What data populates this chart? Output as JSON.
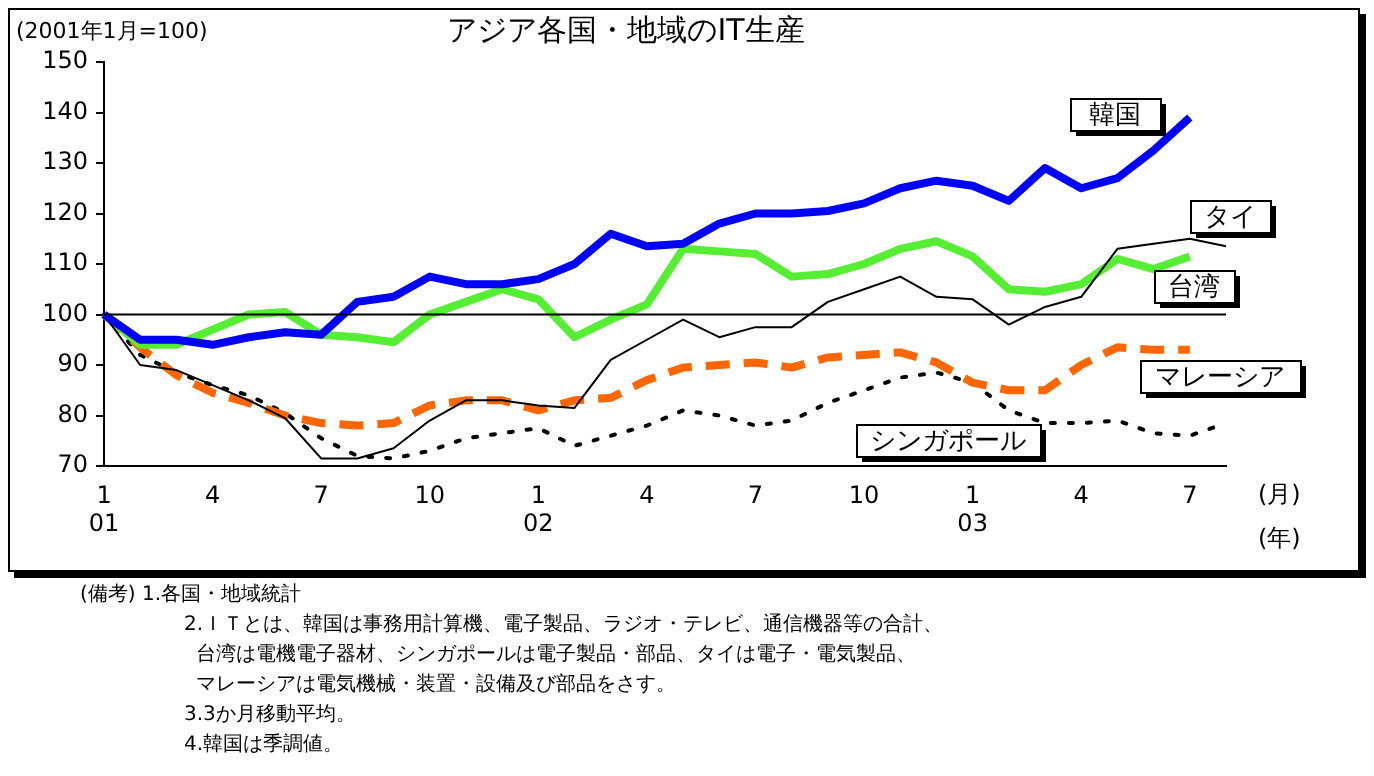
{
  "chart_data": {
    "type": "line",
    "title": "アジア各国・地域のIT生産",
    "ylabel": "(2001年1月=100)",
    "xlabel": "(月)\n(年)",
    "categories": [
      "1\n01",
      null,
      null,
      "4",
      null,
      null,
      "7",
      null,
      null,
      "10",
      null,
      null,
      "1\n02",
      null,
      null,
      "4",
      null,
      null,
      "7",
      null,
      null,
      "10",
      null,
      null,
      "1\n03",
      null,
      null,
      "4",
      null,
      null,
      "7",
      null
    ],
    "series": [
      {
        "name": "韓国",
        "color": "#0000ff",
        "line_style": "solid",
        "values": [
          100,
          95,
          95,
          94,
          95.5,
          96.5,
          96,
          102.5,
          103.5,
          107.5,
          106,
          106,
          107,
          110,
          116,
          113.5,
          114,
          118,
          120,
          120,
          120.5,
          122,
          125,
          126.5,
          125.5,
          122.5,
          129,
          125,
          127,
          132.5,
          139,
          null
        ]
      },
      {
        "name": "タイ",
        "color": "#000000",
        "line_style": "solid",
        "values": [
          100,
          90,
          89,
          86,
          83,
          79.5,
          71.5,
          71.5,
          73.5,
          79,
          83,
          83,
          82,
          81.5,
          91,
          95,
          99,
          95.5,
          97.5,
          97.5,
          102.5,
          105,
          107.5,
          103.5,
          103,
          98,
          101.5,
          103.5,
          113,
          114,
          115,
          113.5
        ]
      },
      {
        "name": "台湾",
        "color": "#55ee33",
        "line_style": "solid",
        "values": [
          100,
          94,
          94,
          97,
          100,
          100.5,
          96,
          95.5,
          94.5,
          100,
          102.5,
          105,
          103,
          95.5,
          99,
          102,
          113,
          112.5,
          112,
          107.5,
          108,
          110,
          113,
          114.5,
          111.5,
          105,
          104.5,
          106,
          111,
          109,
          111.5,
          null
        ]
      },
      {
        "name": "マレーシア",
        "color": "#ff6600",
        "line_style": "dashed",
        "values": [
          100,
          93.5,
          88,
          84.5,
          82.5,
          80,
          78.5,
          78,
          78.5,
          82,
          83,
          83,
          81,
          83,
          83.5,
          87,
          89.5,
          90,
          90.5,
          89.5,
          91.5,
          92,
          92.5,
          90.5,
          86.5,
          85,
          85,
          90,
          93.5,
          93,
          93,
          null
        ]
      },
      {
        "name": "シンガポール",
        "color": "#000000",
        "line_style": "dotted",
        "values": [
          100,
          92,
          88.5,
          86,
          84,
          80.5,
          75.5,
          72,
          71.5,
          73,
          75.5,
          76.5,
          77.5,
          74,
          76,
          78,
          81,
          80,
          78,
          79,
          82.5,
          85,
          87.5,
          88.5,
          86.5,
          81,
          78.5,
          78.5,
          79,
          76.5,
          76,
          78.5
        ]
      }
    ],
    "ylim": [
      70,
      150
    ],
    "yticks": [
      70,
      80,
      90,
      100,
      110,
      120,
      130,
      140,
      150
    ],
    "ref_lines": [
      {
        "axis": "y",
        "value": 100,
        "color": "#000000"
      }
    ],
    "grid": false,
    "legend": false,
    "marker": "none",
    "annotations": [
      "(備考) 1.各国・地域統計",
      "2.ＩＴとは、韓国は事務用計算機、電子製品、ラジオ・テレビ、通信機器等の合計、",
      "台湾は電機電子器材、シンガポールは電子製品・部品、タイは電子・電気製品、",
      "マレーシアは電気機械・装置・設備及び部品をさす。",
      "3.3か月移動平均。",
      "4.韓国は季調値。"
    ]
  }
}
